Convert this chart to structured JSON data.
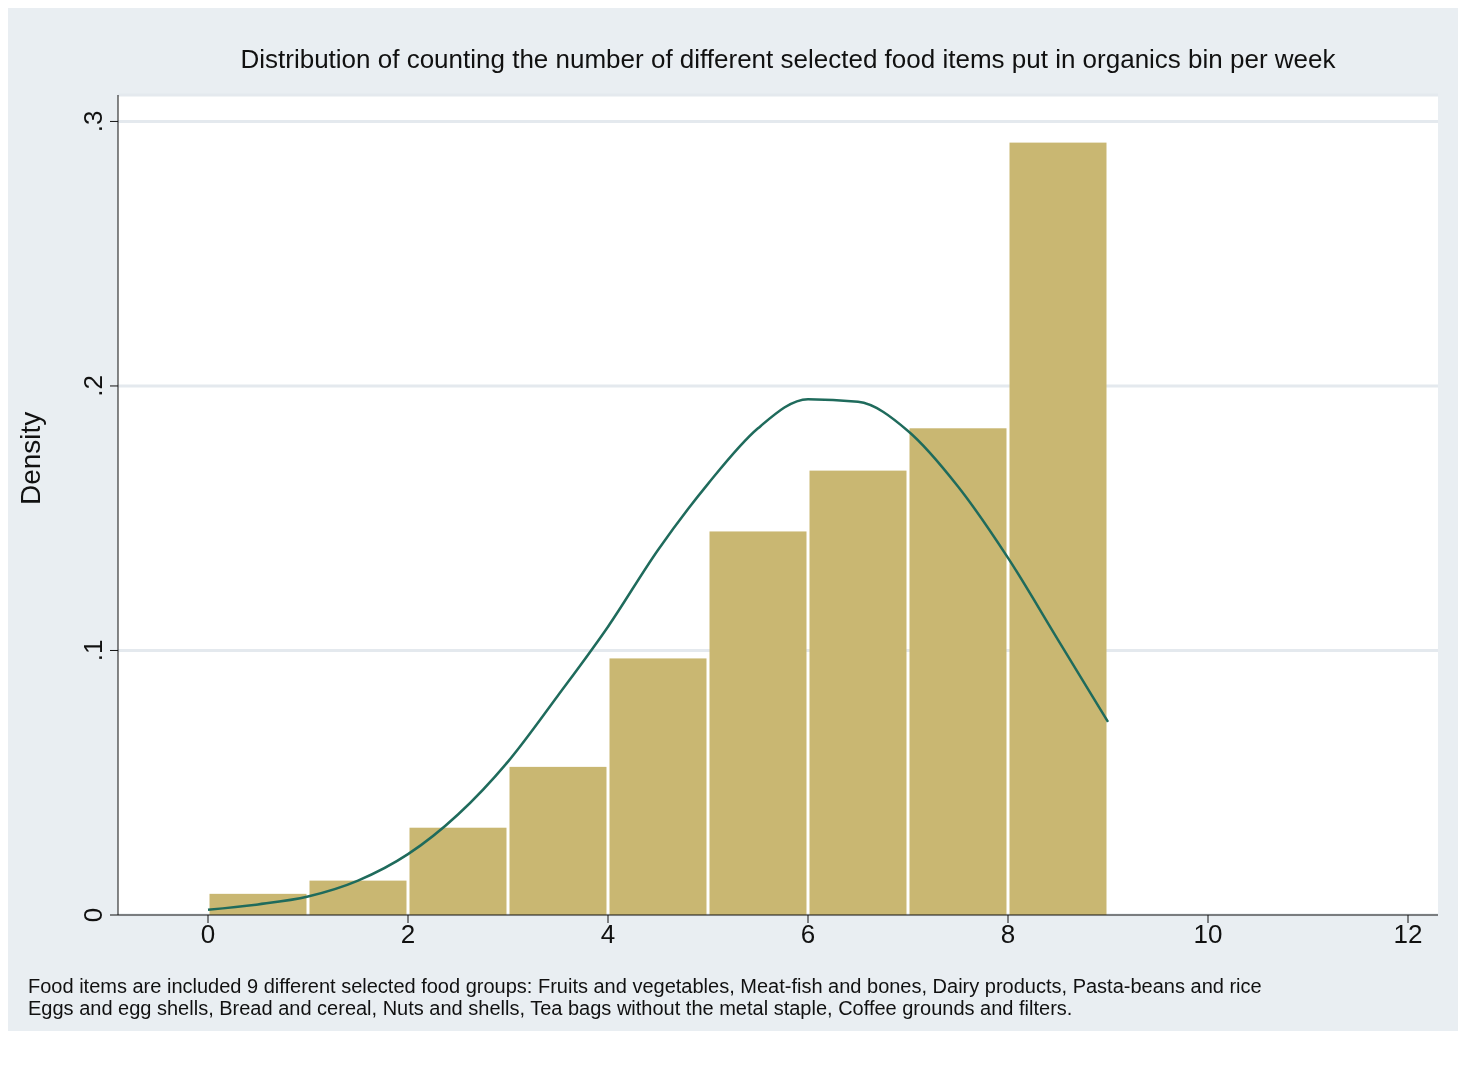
{
  "chart_data": {
    "type": "histogram",
    "title": "Distribution of counting the number of different selected food items put in organics bin per week",
    "ylabel": "Density",
    "bins": [
      0,
      1,
      2,
      3,
      4,
      5,
      6,
      7,
      8,
      9
    ],
    "values": [
      0.008,
      0.013,
      0.033,
      0.056,
      0.097,
      0.145,
      0.168,
      0.184,
      0.292
    ],
    "color": "#c9b772",
    "series": [
      {
        "type": "line",
        "color": "#1f6b5c",
        "x": [
          0,
          0.5,
          1,
          1.5,
          2,
          2.5,
          3,
          3.5,
          4,
          4.5,
          5,
          5.5,
          6,
          6.5,
          7,
          7.5,
          8,
          8.5,
          9
        ],
        "values": [
          0.002,
          0.004,
          0.007,
          0.013,
          0.023,
          0.038,
          0.058,
          0.083,
          0.109,
          0.138,
          0.163,
          0.184,
          0.195,
          0.194,
          0.183,
          0.162,
          0.135,
          0.104,
          0.073
        ]
      }
    ],
    "xlim": [
      -0.9,
      12.3
    ],
    "xticks": [
      0,
      2,
      4,
      6,
      8,
      10,
      12
    ],
    "ylim": [
      0,
      0.31
    ],
    "yticks": [
      {
        "value": 0,
        "label": "0"
      },
      {
        "value": 0.1,
        "label": ".1"
      },
      {
        "value": 0.2,
        "label": ".2"
      },
      {
        "value": 0.3,
        "label": ".3"
      }
    ],
    "grid": "y",
    "legend": false,
    "marker": "none",
    "line_style": "solid",
    "annotations": [
      "Food items are included 9 different selected food groups: Fruits and vegetables, Meat-fish and bones, Dairy products, Pasta-beans and rice",
      "Eggs and egg shells, Bread and cereal, Nuts and shells, Tea bags without the metal staple, Coffee grounds and filters."
    ]
  }
}
